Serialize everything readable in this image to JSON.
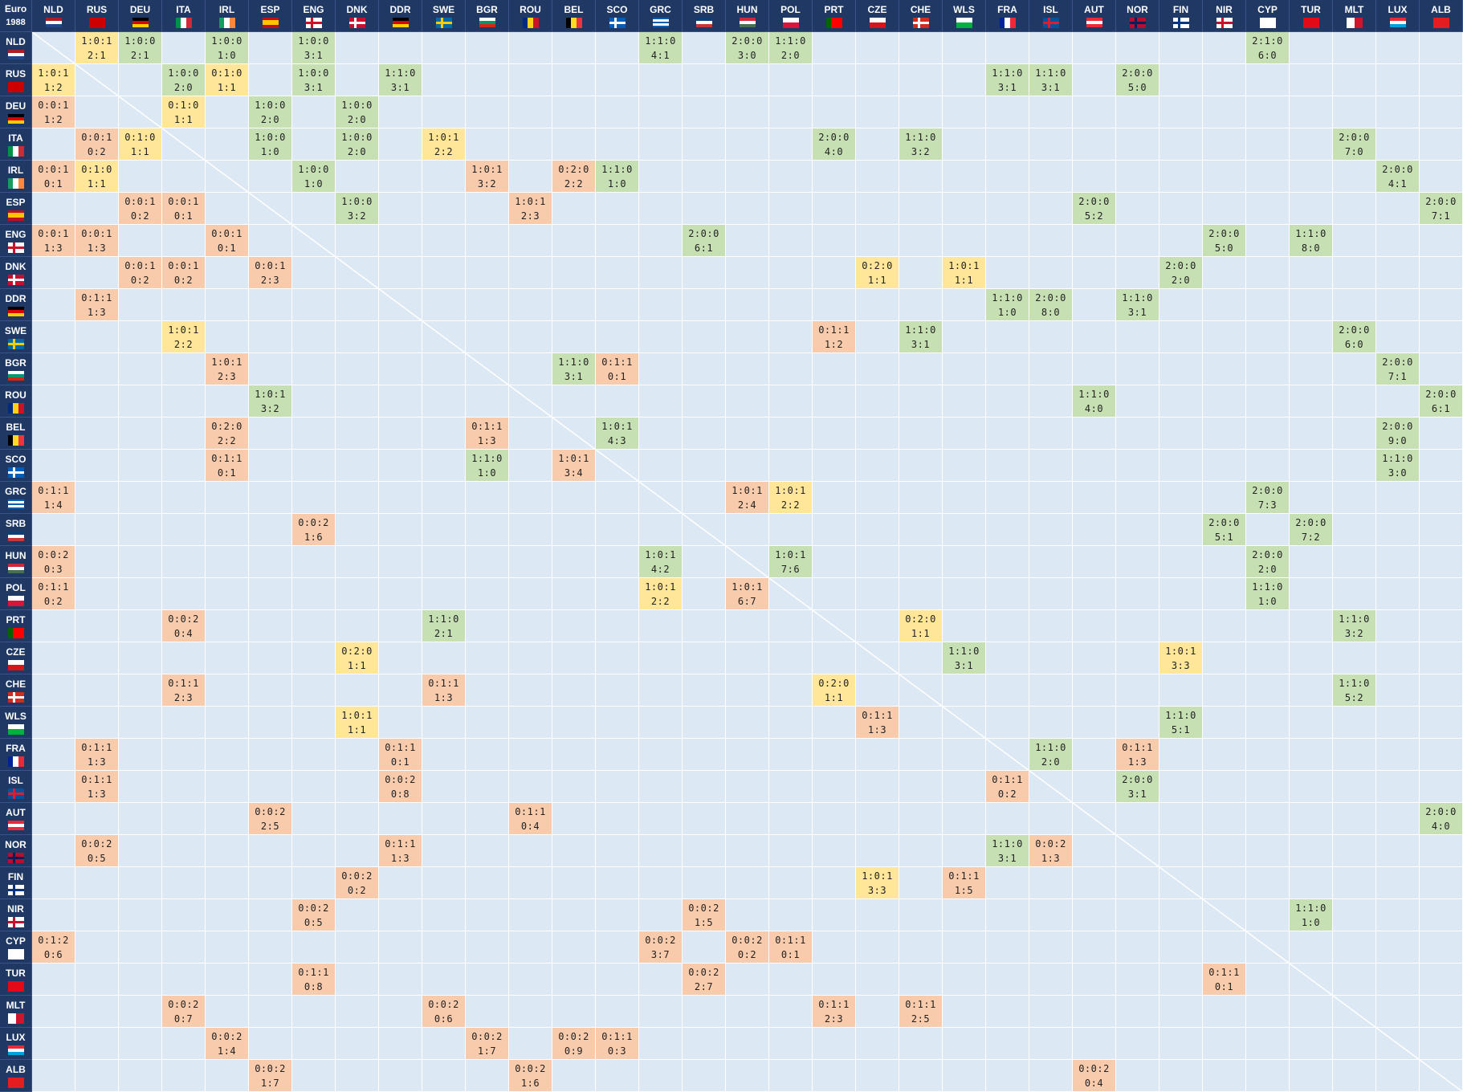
{
  "title": "Euro",
  "year": "1988",
  "columns": [
    "NLD",
    "RUS",
    "DEU",
    "ITA",
    "IRL",
    "ESP",
    "ENG",
    "DNK",
    "DDR",
    "SWE",
    "BGR",
    "ROU",
    "BEL",
    "SCO",
    "GRC",
    "SRB",
    "HUN",
    "POL",
    "PRT",
    "CZE",
    "CHE",
    "WLS",
    "FRA",
    "ISL",
    "AUT",
    "NOR",
    "FIN",
    "NIR",
    "CYP",
    "TUR",
    "MLT",
    "LUX",
    "ALB"
  ],
  "rows": [
    {
      "team": "NLD",
      "results": {
        "RUS": {
          "record": "1:0:1",
          "score": "2:1",
          "color": "#ffe699"
        },
        "DEU": {
          "record": "1:0:0",
          "score": "2:1",
          "color": "#c6e0b4"
        },
        "IRL": {
          "record": "1:0:0",
          "score": "1:0",
          "color": "#c6e0b4"
        },
        "ENG": {
          "record": "1:0:0",
          "score": "3:1",
          "color": "#c6e0b4"
        },
        "GRC": {
          "record": "1:1:0",
          "score": "4:1",
          "color": "#c6e0b4"
        },
        "HUN": {
          "record": "2:0:0",
          "score": "3:0",
          "color": "#c6e0b4"
        },
        "POL": {
          "record": "1:1:0",
          "score": "2:0",
          "color": "#c6e0b4"
        },
        "CYP": {
          "record": "2:1:0",
          "score": "6:0",
          "color": "#c6e0b4"
        }
      }
    },
    {
      "team": "RUS",
      "results": {
        "NLD": {
          "record": "1:0:1",
          "score": "1:2",
          "color": "#ffe699"
        },
        "ITA": {
          "record": "1:0:0",
          "score": "2:0",
          "color": "#c6e0b4"
        },
        "IRL": {
          "record": "0:1:0",
          "score": "1:1",
          "color": "#ffe699"
        },
        "ENG": {
          "record": "1:0:0",
          "score": "3:1",
          "color": "#c6e0b4"
        },
        "DDR": {
          "record": "1:1:0",
          "score": "3:1",
          "color": "#c6e0b4"
        },
        "FRA": {
          "record": "1:1:0",
          "score": "3:1",
          "color": "#c6e0b4"
        },
        "ISL": {
          "record": "1:1:0",
          "score": "3:1",
          "color": "#c6e0b4"
        },
        "NOR": {
          "record": "2:0:0",
          "score": "5:0",
          "color": "#c6e0b4"
        }
      }
    },
    {
      "team": "DEU",
      "results": {
        "NLD": {
          "record": "0:0:1",
          "score": "1:2",
          "color": "#f8cbad"
        },
        "ITA": {
          "record": "0:1:0",
          "score": "1:1",
          "color": "#ffe699"
        },
        "ESP": {
          "record": "1:0:0",
          "score": "2:0",
          "color": "#c6e0b4"
        },
        "DNK": {
          "record": "1:0:0",
          "score": "2:0",
          "color": "#c6e0b4"
        }
      }
    },
    {
      "team": "ITA",
      "results": {
        "RUS": {
          "record": "0:0:1",
          "score": "0:2",
          "color": "#f8cbad"
        },
        "DEU": {
          "record": "0:1:0",
          "score": "1:1",
          "color": "#ffe699"
        },
        "ESP": {
          "record": "1:0:0",
          "score": "1:0",
          "color": "#c6e0b4"
        },
        "DNK": {
          "record": "1:0:0",
          "score": "2:0",
          "color": "#c6e0b4"
        },
        "SWE": {
          "record": "1:0:1",
          "score": "2:2",
          "color": "#ffe699"
        },
        "PRT": {
          "record": "2:0:0",
          "score": "4:0",
          "color": "#c6e0b4"
        },
        "CHE": {
          "record": "1:1:0",
          "score": "3:2",
          "color": "#c6e0b4"
        },
        "MLT": {
          "record": "2:0:0",
          "score": "7:0",
          "color": "#c6e0b4"
        }
      }
    },
    {
      "team": "IRL",
      "results": {
        "NLD": {
          "record": "0:0:1",
          "score": "0:1",
          "color": "#f8cbad"
        },
        "RUS": {
          "record": "0:1:0",
          "score": "1:1",
          "color": "#ffe699"
        },
        "ENG": {
          "record": "1:0:0",
          "score": "1:0",
          "color": "#c6e0b4"
        },
        "BGR": {
          "record": "1:0:1",
          "score": "3:2",
          "color": "#f8cbad"
        },
        "BEL": {
          "record": "0:2:0",
          "score": "2:2",
          "color": "#f8cbad"
        },
        "SCO": {
          "record": "1:1:0",
          "score": "1:0",
          "color": "#c6e0b4"
        },
        "LUX": {
          "record": "2:0:0",
          "score": "4:1",
          "color": "#c6e0b4"
        }
      }
    },
    {
      "team": "ESP",
      "results": {
        "DEU": {
          "record": "0:0:1",
          "score": "0:2",
          "color": "#f8cbad"
        },
        "ITA": {
          "record": "0:0:1",
          "score": "0:1",
          "color": "#f8cbad"
        },
        "DNK": {
          "record": "1:0:0",
          "score": "3:2",
          "color": "#c6e0b4"
        },
        "ROU": {
          "record": "1:0:1",
          "score": "2:3",
          "color": "#f8cbad"
        },
        "AUT": {
          "record": "2:0:0",
          "score": "5:2",
          "color": "#c6e0b4"
        },
        "ALB": {
          "record": "2:0:0",
          "score": "7:1",
          "color": "#c6e0b4"
        }
      }
    },
    {
      "team": "ENG",
      "results": {
        "NLD": {
          "record": "0:0:1",
          "score": "1:3",
          "color": "#f8cbad"
        },
        "RUS": {
          "record": "0:0:1",
          "score": "1:3",
          "color": "#f8cbad"
        },
        "IRL": {
          "record": "0:0:1",
          "score": "0:1",
          "color": "#f8cbad"
        },
        "SRB": {
          "record": "2:0:0",
          "score": "6:1",
          "color": "#c6e0b4"
        },
        "NIR": {
          "record": "2:0:0",
          "score": "5:0",
          "color": "#c6e0b4"
        },
        "TUR": {
          "record": "1:1:0",
          "score": "8:0",
          "color": "#c6e0b4"
        }
      }
    },
    {
      "team": "DNK",
      "results": {
        "DEU": {
          "record": "0:0:1",
          "score": "0:2",
          "color": "#f8cbad"
        },
        "ITA": {
          "record": "0:0:1",
          "score": "0:2",
          "color": "#f8cbad"
        },
        "ESP": {
          "record": "0:0:1",
          "score": "2:3",
          "color": "#f8cbad"
        },
        "CZE": {
          "record": "0:2:0",
          "score": "1:1",
          "color": "#ffe699"
        },
        "WLS": {
          "record": "1:0:1",
          "score": "1:1",
          "color": "#ffe699"
        },
        "FIN": {
          "record": "2:0:0",
          "score": "2:0",
          "color": "#c6e0b4"
        }
      }
    },
    {
      "team": "DDR",
      "results": {
        "RUS": {
          "record": "0:1:1",
          "score": "1:3",
          "color": "#f8cbad"
        },
        "FRA": {
          "record": "1:1:0",
          "score": "1:0",
          "color": "#c6e0b4"
        },
        "ISL": {
          "record": "2:0:0",
          "score": "8:0",
          "color": "#c6e0b4"
        },
        "NOR": {
          "record": "1:1:0",
          "score": "3:1",
          "color": "#c6e0b4"
        }
      }
    },
    {
      "team": "SWE",
      "results": {
        "ITA": {
          "record": "1:0:1",
          "score": "2:2",
          "color": "#ffe699"
        },
        "PRT": {
          "record": "0:1:1",
          "score": "1:2",
          "color": "#f8cbad"
        },
        "CHE": {
          "record": "1:1:0",
          "score": "3:1",
          "color": "#c6e0b4"
        },
        "MLT": {
          "record": "2:0:0",
          "score": "6:0",
          "color": "#c6e0b4"
        }
      }
    },
    {
      "team": "BGR",
      "results": {
        "IRL": {
          "record": "1:0:1",
          "score": "2:3",
          "color": "#f8cbad"
        },
        "BEL": {
          "record": "1:1:0",
          "score": "3:1",
          "color": "#c6e0b4"
        },
        "SCO": {
          "record": "0:1:1",
          "score": "0:1",
          "color": "#f8cbad"
        },
        "LUX": {
          "record": "2:0:0",
          "score": "7:1",
          "color": "#c6e0b4"
        }
      }
    },
    {
      "team": "ROU",
      "results": {
        "ESP": {
          "record": "1:0:1",
          "score": "3:2",
          "color": "#c6e0b4"
        },
        "AUT": {
          "record": "1:1:0",
          "score": "4:0",
          "color": "#c6e0b4"
        },
        "ALB": {
          "record": "2:0:0",
          "score": "6:1",
          "color": "#c6e0b4"
        }
      }
    },
    {
      "team": "BEL",
      "results": {
        "IRL": {
          "record": "0:2:0",
          "score": "2:2",
          "color": "#f8cbad"
        },
        "BGR": {
          "record": "0:1:1",
          "score": "1:3",
          "color": "#f8cbad"
        },
        "SCO": {
          "record": "1:0:1",
          "score": "4:3",
          "color": "#c6e0b4"
        },
        "LUX": {
          "record": "2:0:0",
          "score": "9:0",
          "color": "#c6e0b4"
        }
      }
    },
    {
      "team": "SCO",
      "results": {
        "IRL": {
          "record": "0:1:1",
          "score": "0:1",
          "color": "#f8cbad"
        },
        "BGR": {
          "record": "1:1:0",
          "score": "1:0",
          "color": "#c6e0b4"
        },
        "BEL": {
          "record": "1:0:1",
          "score": "3:4",
          "color": "#f8cbad"
        },
        "LUX": {
          "record": "1:1:0",
          "score": "3:0",
          "color": "#c6e0b4"
        }
      }
    },
    {
      "team": "GRC",
      "results": {
        "NLD": {
          "record": "0:1:1",
          "score": "1:4",
          "color": "#f8cbad"
        },
        "HUN": {
          "record": "1:0:1",
          "score": "2:4",
          "color": "#f8cbad"
        },
        "POL": {
          "record": "1:0:1",
          "score": "2:2",
          "color": "#ffe699"
        },
        "CYP": {
          "record": "2:0:0",
          "score": "7:3",
          "color": "#c6e0b4"
        }
      }
    },
    {
      "team": "SRB",
      "results": {
        "ENG": {
          "record": "0:0:2",
          "score": "1:6",
          "color": "#f8cbad"
        },
        "NIR": {
          "record": "2:0:0",
          "score": "5:1",
          "color": "#c6e0b4"
        },
        "TUR": {
          "record": "2:0:0",
          "score": "7:2",
          "color": "#c6e0b4"
        }
      }
    },
    {
      "team": "HUN",
      "results": {
        "NLD": {
          "record": "0:0:2",
          "score": "0:3",
          "color": "#f8cbad"
        },
        "GRC": {
          "record": "1:0:1",
          "score": "4:2",
          "color": "#c6e0b4"
        },
        "POL": {
          "record": "1:0:1",
          "score": "7:6",
          "color": "#c6e0b4"
        },
        "CYP": {
          "record": "2:0:0",
          "score": "2:0",
          "color": "#c6e0b4"
        }
      }
    },
    {
      "team": "POL",
      "results": {
        "NLD": {
          "record": "0:1:1",
          "score": "0:2",
          "color": "#f8cbad"
        },
        "GRC": {
          "record": "1:0:1",
          "score": "2:2",
          "color": "#ffe699"
        },
        "HUN": {
          "record": "1:0:1",
          "score": "6:7",
          "color": "#f8cbad"
        },
        "CYP": {
          "record": "1:1:0",
          "score": "1:0",
          "color": "#c6e0b4"
        }
      }
    },
    {
      "team": "PRT",
      "results": {
        "ITA": {
          "record": "0:0:2",
          "score": "0:4",
          "color": "#f8cbad"
        },
        "SWE": {
          "record": "1:1:0",
          "score": "2:1",
          "color": "#c6e0b4"
        },
        "CHE": {
          "record": "0:2:0",
          "score": "1:1",
          "color": "#ffe699"
        },
        "MLT": {
          "record": "1:1:0",
          "score": "3:2",
          "color": "#c6e0b4"
        }
      }
    },
    {
      "team": "CZE",
      "results": {
        "DNK": {
          "record": "0:2:0",
          "score": "1:1",
          "color": "#ffe699"
        },
        "WLS": {
          "record": "1:1:0",
          "score": "3:1",
          "color": "#c6e0b4"
        },
        "FIN": {
          "record": "1:0:1",
          "score": "3:3",
          "color": "#ffe699"
        }
      }
    },
    {
      "team": "CHE",
      "results": {
        "ITA": {
          "record": "0:1:1",
          "score": "2:3",
          "color": "#f8cbad"
        },
        "SWE": {
          "record": "0:1:1",
          "score": "1:3",
          "color": "#f8cbad"
        },
        "PRT": {
          "record": "0:2:0",
          "score": "1:1",
          "color": "#ffe699"
        },
        "MLT": {
          "record": "1:1:0",
          "score": "5:2",
          "color": "#c6e0b4"
        }
      }
    },
    {
      "team": "WLS",
      "results": {
        "DNK": {
          "record": "1:0:1",
          "score": "1:1",
          "color": "#ffe699"
        },
        "CZE": {
          "record": "0:1:1",
          "score": "1:3",
          "color": "#f8cbad"
        },
        "FIN": {
          "record": "1:1:0",
          "score": "5:1",
          "color": "#c6e0b4"
        }
      }
    },
    {
      "team": "FRA",
      "results": {
        "RUS": {
          "record": "0:1:1",
          "score": "1:3",
          "color": "#f8cbad"
        },
        "DDR": {
          "record": "0:1:1",
          "score": "0:1",
          "color": "#f8cbad"
        },
        "ISL": {
          "record": "1:1:0",
          "score": "2:0",
          "color": "#c6e0b4"
        },
        "NOR": {
          "record": "0:1:1",
          "score": "1:3",
          "color": "#f8cbad"
        }
      }
    },
    {
      "team": "ISL",
      "results": {
        "RUS": {
          "record": "0:1:1",
          "score": "1:3",
          "color": "#f8cbad"
        },
        "DDR": {
          "record": "0:0:2",
          "score": "0:8",
          "color": "#f8cbad"
        },
        "FRA": {
          "record": "0:1:1",
          "score": "0:2",
          "color": "#f8cbad"
        },
        "NOR": {
          "record": "2:0:0",
          "score": "3:1",
          "color": "#c6e0b4"
        }
      }
    },
    {
      "team": "AUT",
      "results": {
        "ESP": {
          "record": "0:0:2",
          "score": "2:5",
          "color": "#f8cbad"
        },
        "ROU": {
          "record": "0:1:1",
          "score": "0:4",
          "color": "#f8cbad"
        },
        "ALB": {
          "record": "2:0:0",
          "score": "4:0",
          "color": "#c6e0b4"
        }
      }
    },
    {
      "team": "NOR",
      "results": {
        "RUS": {
          "record": "0:0:2",
          "score": "0:5",
          "color": "#f8cbad"
        },
        "DDR": {
          "record": "0:1:1",
          "score": "1:3",
          "color": "#f8cbad"
        },
        "FRA": {
          "record": "1:1:0",
          "score": "3:1",
          "color": "#c6e0b4"
        },
        "ISL": {
          "record": "0:0:2",
          "score": "1:3",
          "color": "#f8cbad"
        }
      }
    },
    {
      "team": "FIN",
      "results": {
        "DNK": {
          "record": "0:0:2",
          "score": "0:2",
          "color": "#f8cbad"
        },
        "CZE": {
          "record": "1:0:1",
          "score": "3:3",
          "color": "#ffe699"
        },
        "WLS": {
          "record": "0:1:1",
          "score": "1:5",
          "color": "#f8cbad"
        }
      }
    },
    {
      "team": "NIR",
      "results": {
        "ENG": {
          "record": "0:0:2",
          "score": "0:5",
          "color": "#f8cbad"
        },
        "SRB": {
          "record": "0:0:2",
          "score": "1:5",
          "color": "#f8cbad"
        },
        "TUR": {
          "record": "1:1:0",
          "score": "1:0",
          "color": "#c6e0b4"
        }
      }
    },
    {
      "team": "CYP",
      "results": {
        "NLD": {
          "record": "0:1:2",
          "score": "0:6",
          "color": "#f8cbad"
        },
        "GRC": {
          "record": "0:0:2",
          "score": "3:7",
          "color": "#f8cbad"
        },
        "HUN": {
          "record": "0:0:2",
          "score": "0:2",
          "color": "#f8cbad"
        },
        "POL": {
          "record": "0:1:1",
          "score": "0:1",
          "color": "#f8cbad"
        }
      }
    },
    {
      "team": "TUR",
      "results": {
        "ENG": {
          "record": "0:1:1",
          "score": "0:8",
          "color": "#f8cbad"
        },
        "SRB": {
          "record": "0:0:2",
          "score": "2:7",
          "color": "#f8cbad"
        },
        "NIR": {
          "record": "0:1:1",
          "score": "0:1",
          "color": "#f8cbad"
        }
      }
    },
    {
      "team": "MLT",
      "results": {
        "ITA": {
          "record": "0:0:2",
          "score": "0:7",
          "color": "#f8cbad"
        },
        "SWE": {
          "record": "0:0:2",
          "score": "0:6",
          "color": "#f8cbad"
        },
        "PRT": {
          "record": "0:1:1",
          "score": "2:3",
          "color": "#f8cbad"
        },
        "CHE": {
          "record": "0:1:1",
          "score": "2:5",
          "color": "#f8cbad"
        }
      }
    },
    {
      "team": "LUX",
      "results": {
        "IRL": {
          "record": "0:0:2",
          "score": "1:4",
          "color": "#f8cbad"
        },
        "BGR": {
          "record": "0:0:2",
          "score": "1:7",
          "color": "#f8cbad"
        },
        "BEL": {
          "record": "0:0:2",
          "score": "0:9",
          "color": "#f8cbad"
        },
        "SCO": {
          "record": "0:1:1",
          "score": "0:3",
          "color": "#f8cbad"
        }
      }
    },
    {
      "team": "ALB",
      "results": {
        "ESP": {
          "record": "0:0:2",
          "score": "1:7",
          "color": "#f8cbad"
        },
        "ROU": {
          "record": "0:0:2",
          "score": "1:6",
          "color": "#f8cbad"
        },
        "AUT": {
          "record": "0:0:2",
          "score": "0:4",
          "color": "#f8cbad"
        }
      }
    }
  ]
}
